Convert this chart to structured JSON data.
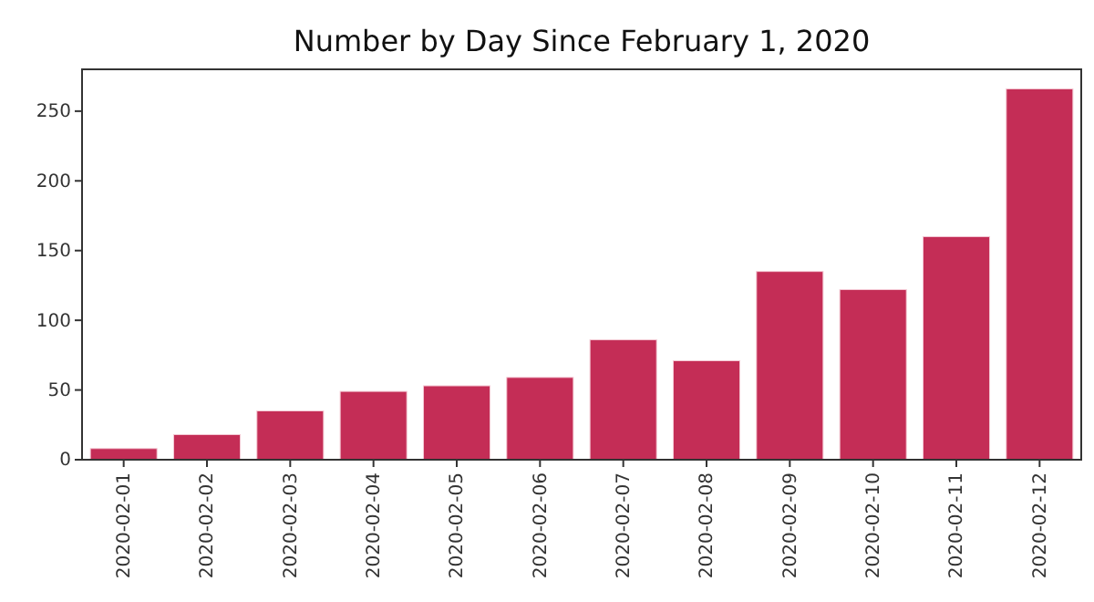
{
  "chart_data": {
    "type": "bar",
    "title": "Number by Day Since February 1, 2020",
    "categories": [
      "2020-02-01",
      "2020-02-02",
      "2020-02-03",
      "2020-02-04",
      "2020-02-05",
      "2020-02-06",
      "2020-02-07",
      "2020-02-08",
      "2020-02-09",
      "2020-02-10",
      "2020-02-11",
      "2020-02-12"
    ],
    "values": [
      8,
      18,
      35,
      49,
      53,
      59,
      86,
      71,
      135,
      122,
      160,
      266
    ],
    "color": "#c42d56",
    "ylim": [
      0,
      280
    ],
    "yticks": [
      0,
      50,
      100,
      150,
      200,
      250
    ],
    "grid": false
  }
}
